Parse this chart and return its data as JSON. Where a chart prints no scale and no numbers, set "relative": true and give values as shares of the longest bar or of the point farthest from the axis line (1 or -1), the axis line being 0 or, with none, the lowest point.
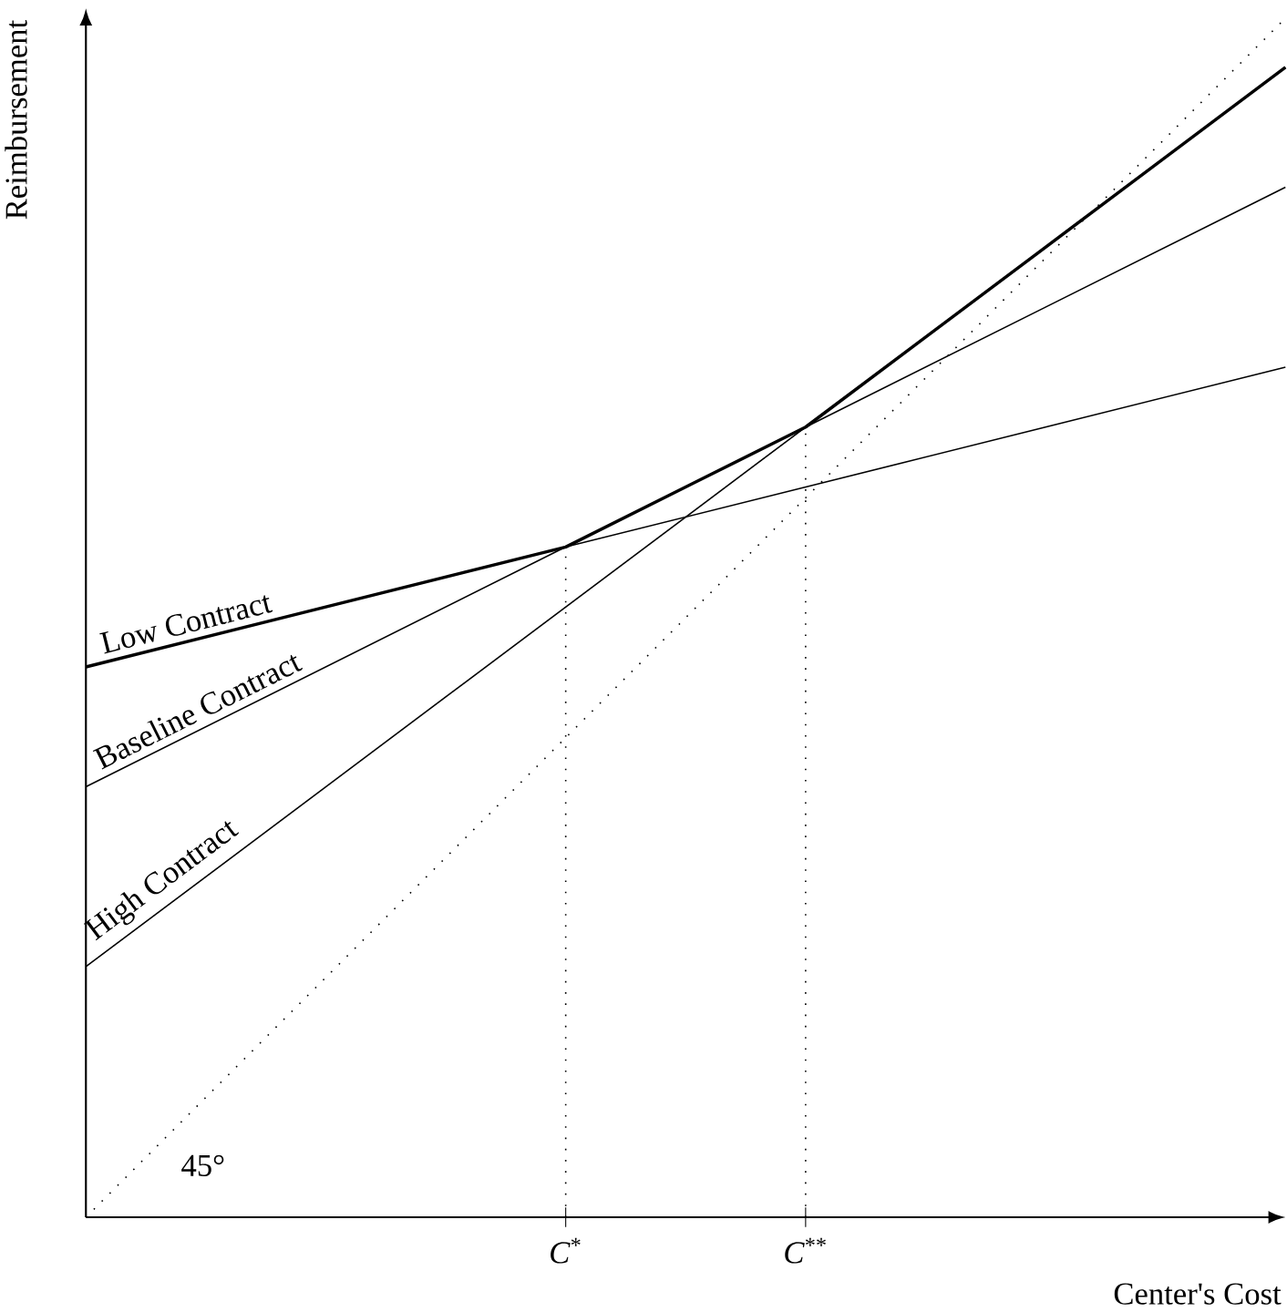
{
  "chart_data": {
    "type": "line",
    "relative": true,
    "xlabel": "Center's Cost",
    "ylabel": "Reimbursement",
    "categories": [
      null,
      null,
      "*C*$^{*}$",
      "*C*$^{**}$",
      null,
      null
    ],
    "tick_labels": "x",
    "grid": false,
    "series": [
      {
        "name": "Low Contract",
        "color": "#000000",
        "values": [
          0.459,
          0.509,
          0.559,
          0.609,
          0.659,
          0.709
        ]
      },
      {
        "name": "Baseline Contract",
        "color": "#000000",
        "values": [
          0.359,
          0.459,
          0.559,
          0.659,
          0.759,
          0.859
        ]
      },
      {
        "name": "High Contract",
        "color": "#000000",
        "values": [
          0.209,
          0.359,
          0.509,
          0.659,
          0.809,
          0.959
        ]
      },
      {
        "color": "#000000",
        "values": [
          0.459,
          0.509,
          0.559,
          0.659,
          0.809,
          0.959
        ]
      },
      {
        "color": "#000000",
        "line_style": "dotted",
        "values": [
          0,
          0.2,
          0.4,
          0.6,
          0.8,
          1
        ]
      }
    ],
    "ref_lines": [
      {
        "axis": "x",
        "value": "*C*$^{*}$",
        "line_style": "dotted",
        "color": "#000000"
      },
      {
        "axis": "x",
        "value": "*C*$^{**}$",
        "line_style": "dotted",
        "color": "#000000"
      }
    ],
    "annotations": [
      "45°"
    ]
  }
}
